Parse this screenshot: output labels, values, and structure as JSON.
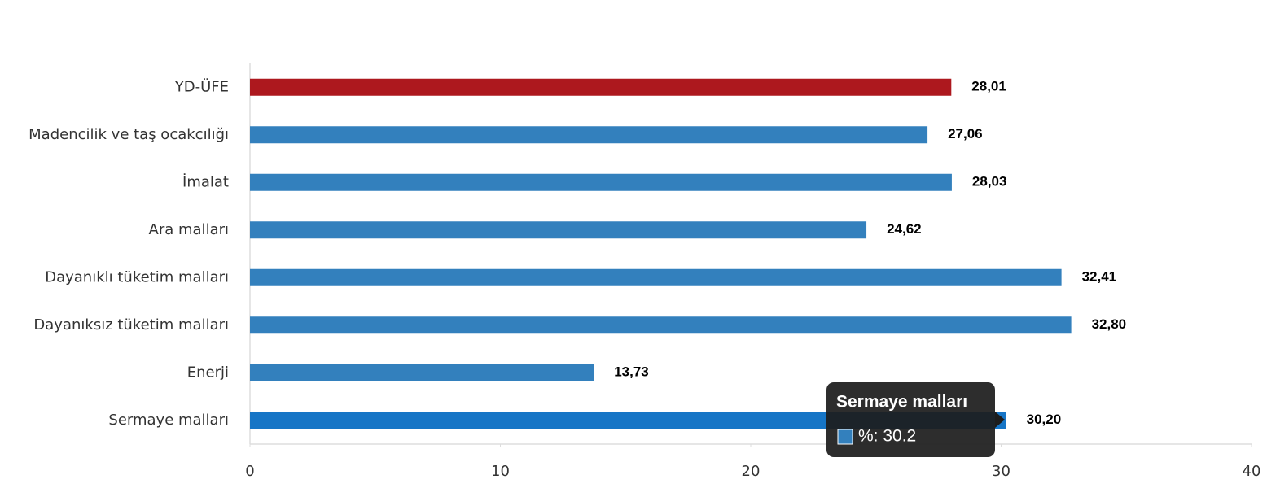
{
  "chart_data": {
    "type": "bar",
    "orientation": "horizontal",
    "categories": [
      "YD-ÜFE",
      "Madencilik ve taş ocakcılığı",
      "İmalat",
      "Ara malları",
      "Dayanıklı tüketim malları",
      "Dayanıksız tüketim malları",
      "Enerji",
      "Sermaye malları"
    ],
    "values": [
      28.01,
      27.06,
      28.03,
      24.62,
      32.41,
      32.8,
      13.73,
      30.2
    ],
    "value_labels": [
      "28,01",
      "27,06",
      "28,03",
      "24,62",
      "32,41",
      "32,80",
      "13,73",
      "30,20"
    ],
    "colors": [
      "#ad181e",
      "#3380bd",
      "#3380bd",
      "#3380bd",
      "#3380bd",
      "#3380bd",
      "#3380bd",
      "#1675c6"
    ],
    "xlim": [
      0,
      40
    ],
    "xticks": [
      0,
      10,
      20,
      30,
      40
    ],
    "tooltip": {
      "title": "Sermaye malları",
      "text": "%: 30.2",
      "color": "#3380bd"
    }
  }
}
